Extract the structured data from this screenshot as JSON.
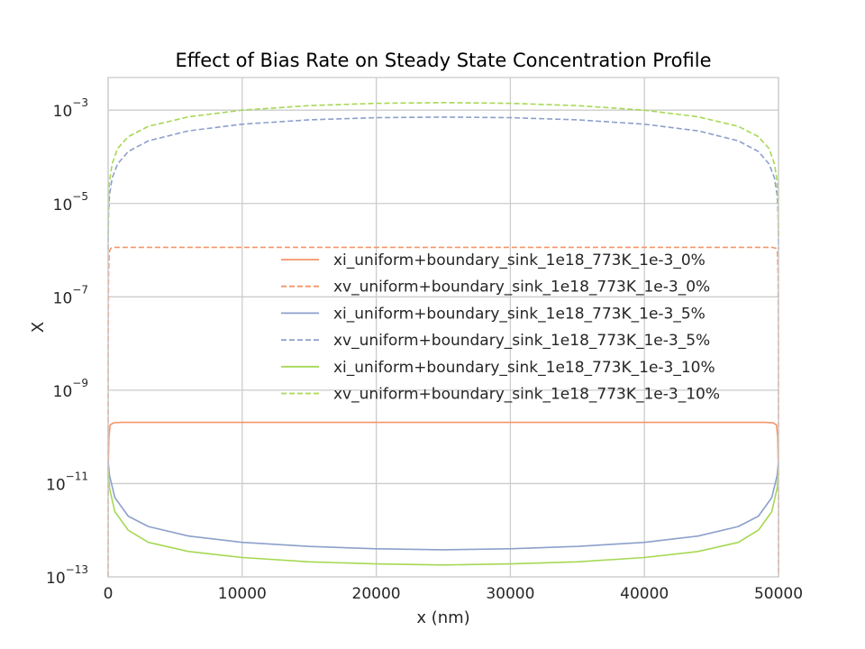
{
  "chart_data": {
    "type": "line",
    "title": "Effect of Bias Rate on Steady State Concentration Profile",
    "xlabel": "x (nm)",
    "ylabel": "X",
    "xlim": [
      0,
      50000
    ],
    "ylim": [
      1e-13,
      0.005
    ],
    "yscale": "log",
    "grid": true,
    "legend_placement": "center-right",
    "x_ticks": [
      {
        "value": 0,
        "label": "0"
      },
      {
        "value": 10000,
        "label": "10000"
      },
      {
        "value": 20000,
        "label": "20000"
      },
      {
        "value": 30000,
        "label": "30000"
      },
      {
        "value": 40000,
        "label": "40000"
      },
      {
        "value": 50000,
        "label": "50000"
      }
    ],
    "y_ticks": [
      {
        "value": 1e-13,
        "base": "10",
        "exp": "−13"
      },
      {
        "value": 1e-11,
        "base": "10",
        "exp": "−11"
      },
      {
        "value": 1e-09,
        "base": "10",
        "exp": "−9"
      },
      {
        "value": 1e-07,
        "base": "10",
        "exp": "−7"
      },
      {
        "value": 1e-05,
        "base": "10",
        "exp": "−5"
      },
      {
        "value": 0.001,
        "base": "10",
        "exp": "−3"
      }
    ],
    "series": [
      {
        "name": "xi_uniform+boundary_sink_1e18_773K_1e-3_0%",
        "color": "#f4956a",
        "dash": "solid",
        "x": [
          0,
          20,
          60,
          150,
          400,
          1000,
          25000,
          49000,
          49600,
          49850,
          49940,
          49980,
          50000
        ],
        "y": [
          1.5e-11,
          3e-11,
          1e-10,
          1.8e-10,
          2e-10,
          2.05e-10,
          2.05e-10,
          2.05e-10,
          2e-10,
          1.8e-10,
          1e-10,
          3e-11,
          1.5e-11
        ]
      },
      {
        "name": "xv_uniform+boundary_sink_1e18_773K_1e-3_0%",
        "color": "#f4956a",
        "dash": "dashed",
        "x": [
          0,
          10,
          30,
          80,
          200,
          500,
          25000,
          49500,
          49800,
          49920,
          49970,
          49990,
          50000
        ],
        "y": [
          1e-13,
          1e-08,
          3e-07,
          9e-07,
          1.1e-06,
          1.15e-06,
          1.15e-06,
          1.15e-06,
          1.1e-06,
          9e-07,
          3e-07,
          1e-08,
          1e-13
        ]
      },
      {
        "name": "xi_uniform+boundary_sink_1e18_773K_1e-3_5%",
        "color": "#8da0cb",
        "dash": "solid",
        "x": [
          0,
          100,
          500,
          1500,
          3000,
          6000,
          10000,
          15000,
          20000,
          25000,
          30000,
          35000,
          40000,
          44000,
          47000,
          48500,
          49500,
          49900,
          50000
        ],
        "y": [
          3e-11,
          1.5e-11,
          5e-12,
          2e-12,
          1.2e-12,
          7.5e-13,
          5.5e-13,
          4.5e-13,
          4e-13,
          3.8e-13,
          4e-13,
          4.5e-13,
          5.5e-13,
          7.5e-13,
          1.2e-12,
          2e-12,
          5e-12,
          1.5e-11,
          3e-11
        ]
      },
      {
        "name": "xv_uniform+boundary_sink_1e18_773K_1e-3_5%",
        "color": "#8da0cb",
        "dash": "dashed",
        "x": [
          0,
          30,
          100,
          300,
          700,
          1500,
          3000,
          6000,
          10000,
          15000,
          20000,
          25000,
          30000,
          35000,
          40000,
          44000,
          47000,
          48500,
          49300,
          49700,
          49900,
          49970,
          50000
        ],
        "y": [
          1e-06,
          6e-06,
          1.5e-05,
          3.5e-05,
          7e-05,
          0.00013,
          0.00022,
          0.00036,
          0.0005,
          0.00062,
          0.00069,
          0.00071,
          0.00069,
          0.00062,
          0.0005,
          0.00036,
          0.00022,
          0.00013,
          7e-05,
          3.5e-05,
          1.5e-05,
          6e-06,
          1e-06
        ]
      },
      {
        "name": "xi_uniform+boundary_sink_1e18_773K_1e-3_10%",
        "color": "#a6d854",
        "dash": "solid",
        "x": [
          0,
          100,
          500,
          1500,
          3000,
          6000,
          10000,
          15000,
          20000,
          25000,
          30000,
          35000,
          40000,
          44000,
          47000,
          48500,
          49500,
          49900,
          50000
        ],
        "y": [
          2e-11,
          8e-12,
          2.5e-12,
          1e-12,
          5.5e-13,
          3.5e-13,
          2.6e-13,
          2.1e-13,
          1.9e-13,
          1.8e-13,
          1.9e-13,
          2.1e-13,
          2.6e-13,
          3.5e-13,
          5.5e-13,
          1e-12,
          2.5e-12,
          8e-12,
          2e-11
        ]
      },
      {
        "name": "xv_uniform+boundary_sink_1e18_773K_1e-3_10%",
        "color": "#a6d854",
        "dash": "dashed",
        "x": [
          0,
          30,
          100,
          300,
          700,
          1500,
          3000,
          6000,
          10000,
          15000,
          20000,
          25000,
          30000,
          35000,
          40000,
          44000,
          47000,
          48500,
          49300,
          49700,
          49900,
          49970,
          50000
        ],
        "y": [
          2e-06,
          1.2e-05,
          3e-05,
          7e-05,
          0.00015,
          0.00027,
          0.00045,
          0.00072,
          0.001,
          0.00125,
          0.0014,
          0.00145,
          0.0014,
          0.00125,
          0.001,
          0.00072,
          0.00045,
          0.00027,
          0.00015,
          7e-05,
          3e-05,
          1.2e-05,
          2e-06
        ]
      }
    ]
  }
}
